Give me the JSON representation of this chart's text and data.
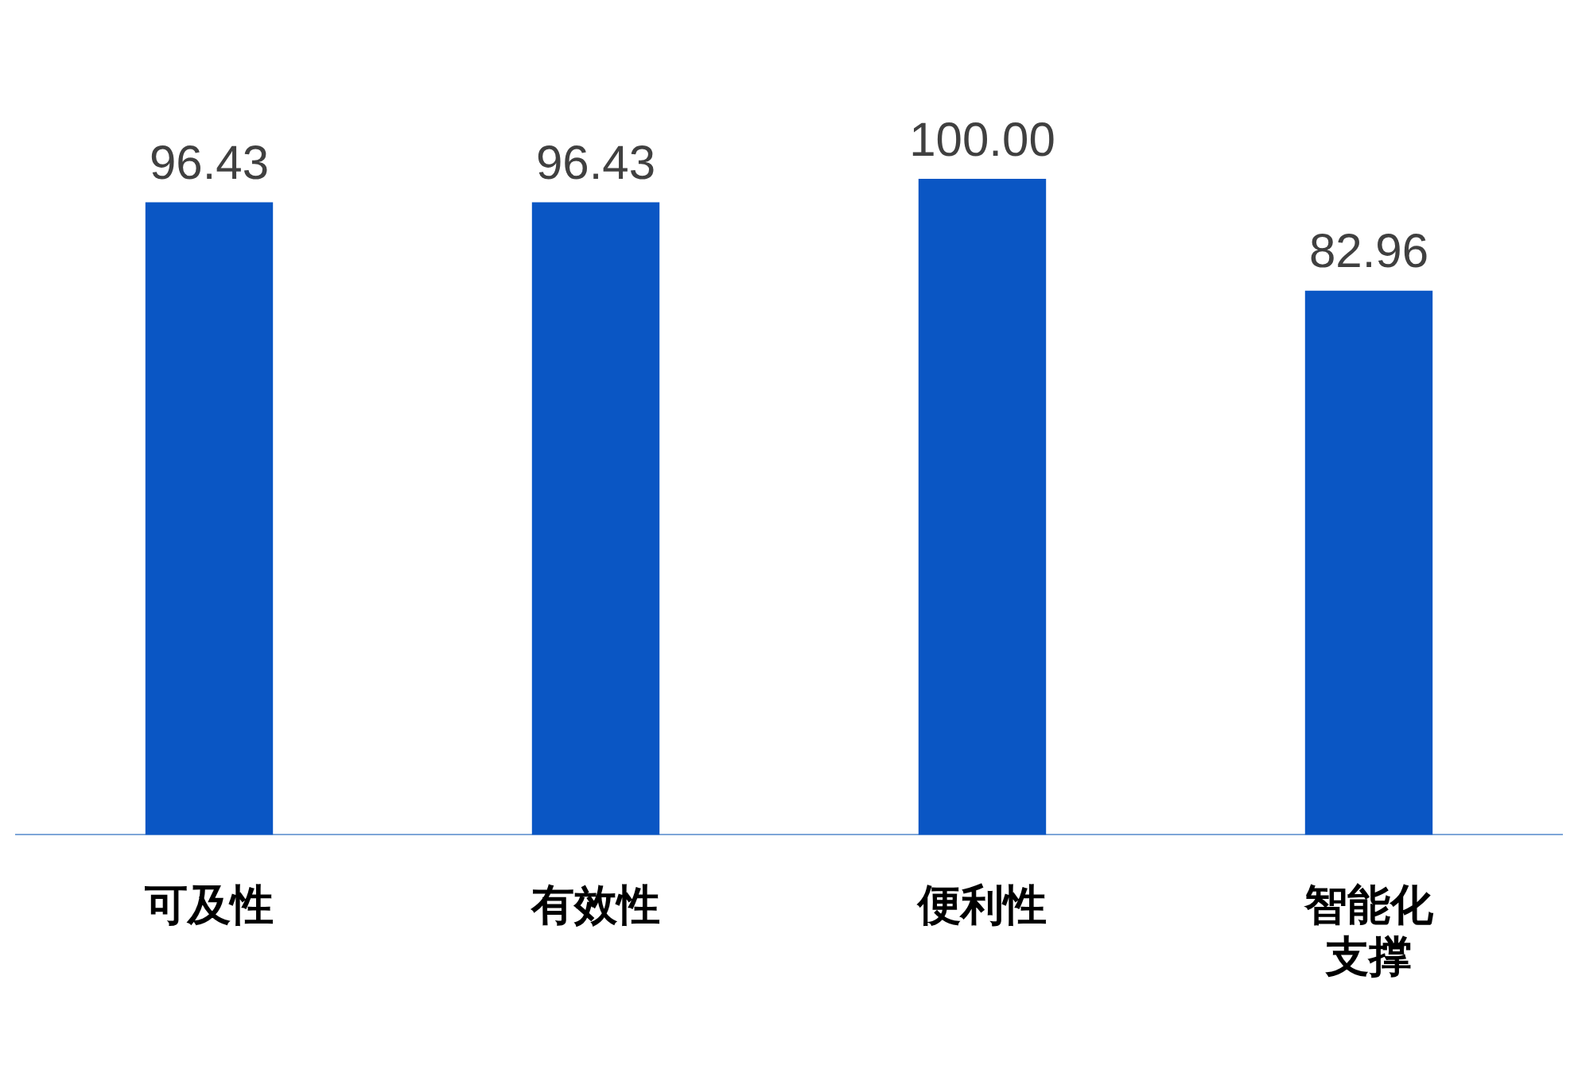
{
  "chart_data": {
    "type": "bar",
    "categories": [
      "可及性",
      "有效性",
      "便利性",
      "智能化支撑"
    ],
    "values": [
      96.43,
      96.43,
      100.0,
      82.96
    ],
    "value_labels": [
      "96.43",
      "96.43",
      "100.00",
      "82.96"
    ],
    "color": "#0a56c4",
    "legend": false,
    "grid": false,
    "tick_labels": "x"
  }
}
